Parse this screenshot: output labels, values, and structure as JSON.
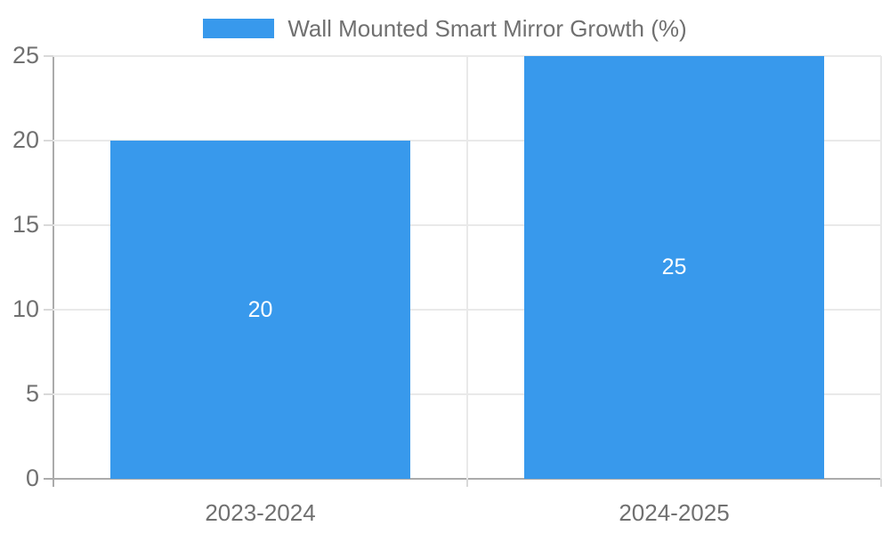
{
  "chart_data": {
    "type": "bar",
    "title": "",
    "legend": {
      "position": "top",
      "label": "Wall Mounted Smart Mirror Growth (%)"
    },
    "categories": [
      "2023-2024",
      "2024-2025"
    ],
    "values": [
      20,
      25
    ],
    "bar_value_labels": [
      "20",
      "25"
    ],
    "xlabel": "",
    "ylabel": "",
    "ylim": [
      0,
      25
    ],
    "yticks": [
      0,
      5,
      10,
      15,
      20,
      25
    ],
    "grid": true,
    "colors": {
      "bar": "#3899ec",
      "grid_line": "#e9e9e9",
      "minor_tick": "#d9d9d9",
      "axis_line": "#ababab",
      "tick_label_text": "#707070",
      "bar_value_text": "#ffffff",
      "background": "#ffffff"
    }
  }
}
